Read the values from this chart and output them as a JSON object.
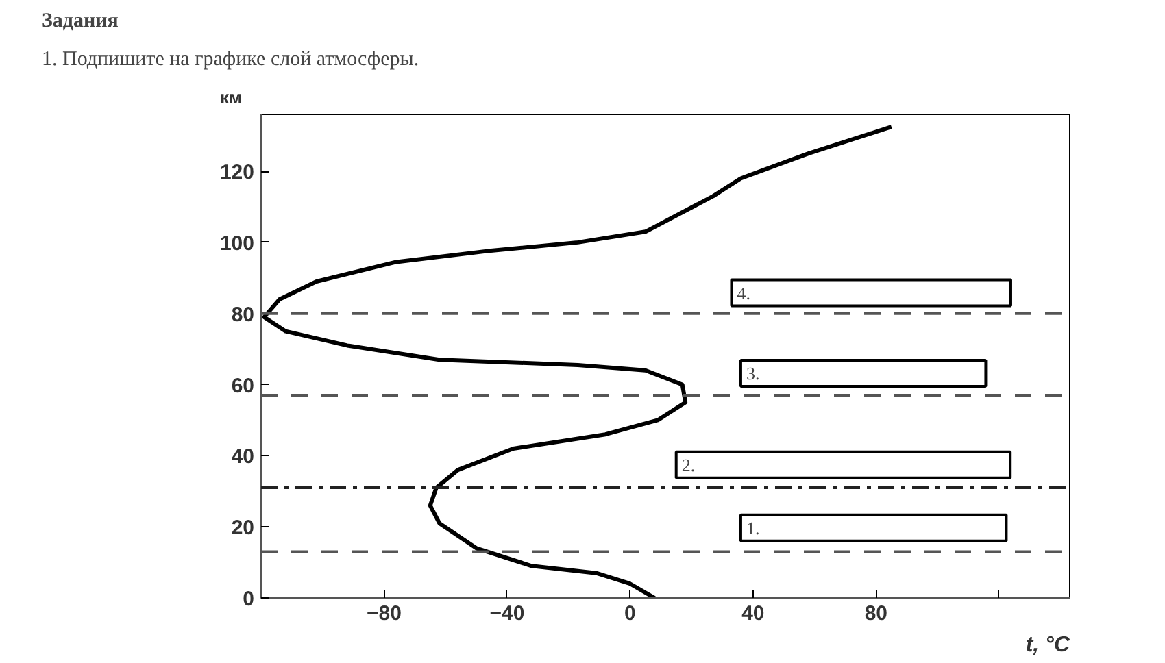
{
  "chart_data": {
    "type": "line",
    "title": "Задания",
    "subtitle": "1. Подпишите на графике слой атмосферы.",
    "xlabel": "t, °C",
    "ylabel": "км",
    "xlim": [
      -120,
      143
    ],
    "ylim": [
      0,
      136
    ],
    "xticks": [
      -80,
      -40,
      0,
      40,
      80,
      {
        "value": 120,
        "label": null
      }
    ],
    "yticks": [
      0,
      20,
      40,
      60,
      80,
      100,
      120
    ],
    "series": [
      {
        "color": "#000000",
        "x": [
          8,
          0,
          -11,
          -32,
          -50,
          -62,
          -65,
          -63,
          -56,
          -38,
          -8,
          9,
          18,
          17,
          5,
          -17,
          -62,
          -92,
          -112,
          -119,
          -114,
          -102,
          -76,
          -47,
          -17,
          5,
          27,
          36,
          58,
          85
        ],
        "values": [
          0,
          4,
          7,
          9,
          14,
          21,
          26,
          31,
          36,
          42,
          46,
          50,
          55,
          60,
          64,
          65.5,
          67,
          71,
          75,
          79,
          84,
          89,
          94.5,
          97.5,
          100,
          103,
          113,
          118,
          125,
          132.5
        ]
      }
    ],
    "ref_lines": [
      {
        "axis": "y",
        "value": 80,
        "line_style": "dashed",
        "color": "#555555"
      },
      {
        "axis": "y",
        "value": 57,
        "line_style": "dashed",
        "color": "#555555"
      },
      {
        "axis": "y",
        "value": 31,
        "line_style": "dashdot",
        "color": "#222222"
      },
      {
        "axis": "y",
        "value": 13,
        "line_style": "dashed",
        "color": "#555555"
      }
    ],
    "annotations": [
      "1.",
      "2.",
      "3.",
      "4."
    ],
    "grid": false,
    "line_style": "solid",
    "marker": "none"
  }
}
